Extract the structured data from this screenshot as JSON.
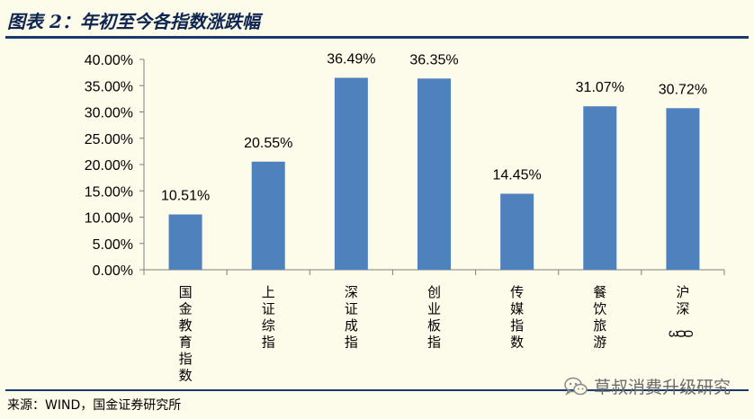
{
  "figure": {
    "title": "图表 2：年初至今各指数涨跌幅",
    "source": "来源：WIND，国金证券研究所",
    "watermark": "草叔消费升级研究"
  },
  "chart_data": {
    "type": "bar",
    "categories": [
      "国金教育指数",
      "上证综指",
      "深证成指",
      "创业板指",
      "传媒指数",
      "餐饮旅游",
      "沪深300"
    ],
    "values": [
      10.51,
      20.55,
      36.49,
      36.35,
      14.45,
      31.07,
      30.72
    ],
    "data_labels": [
      "10.51%",
      "20.55%",
      "36.49%",
      "36.35%",
      "14.45%",
      "31.07%",
      "30.72%"
    ],
    "ylim": [
      0,
      40
    ],
    "yticks": [
      "0.00%",
      "5.00%",
      "10.00%",
      "15.00%",
      "20.00%",
      "25.00%",
      "30.00%",
      "35.00%",
      "40.00%"
    ],
    "bar_color": "#4f81bd",
    "grid": false,
    "legend": "none"
  }
}
